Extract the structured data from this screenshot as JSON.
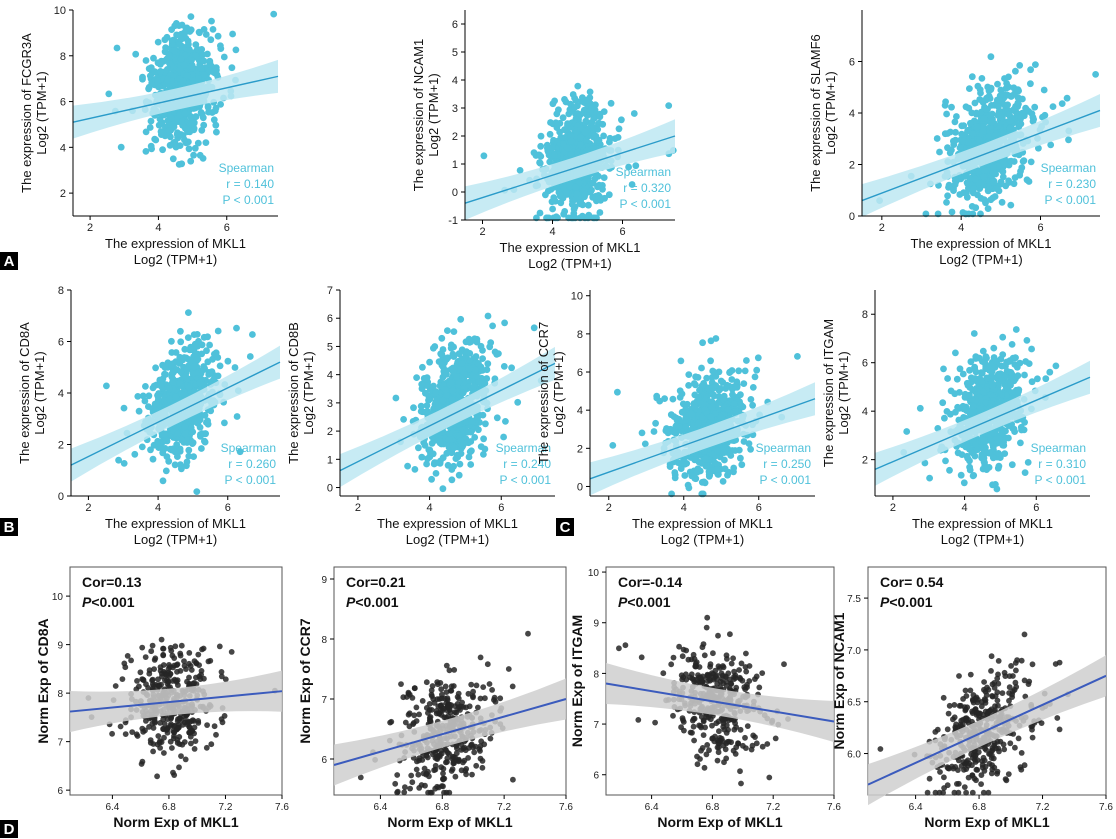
{
  "colors": {
    "point_top": "#4fc1da",
    "band_top": "#bde7f2",
    "line_top": "#2a9bc9",
    "point_bottom": "#262626",
    "band_bottom": "#cfcfcf",
    "line_bottom": "#3b5bbd"
  },
  "panel_labels": [
    "A",
    "B",
    "C",
    "D"
  ],
  "chart_data": [
    {
      "type": "scatter",
      "xlabel": "The expression of MKL1",
      "xlabel2": "Log2 (TPM+1)",
      "ylabel": "The expression of FCGR3A",
      "ylabel2": "Log2 (TPM+1)",
      "xlim": [
        1.5,
        7.5
      ],
      "ylim": [
        1,
        10
      ],
      "xticks": [
        2,
        4,
        6
      ],
      "yticks": [
        2,
        4,
        6,
        8,
        10
      ],
      "legend": [
        "Spearman",
        "r = 0.140",
        "P < 0.001"
      ],
      "trend": {
        "x": [
          1.5,
          7.5
        ],
        "y": [
          5.1,
          7.1
        ]
      }
    },
    {
      "type": "scatter",
      "xlabel": "The expression of MKL1",
      "xlabel2": "Log2 (TPM+1)",
      "ylabel": "The expression of NCAM1",
      "ylabel2": "Log2 (TPM+1)",
      "xlim": [
        1.5,
        7.5
      ],
      "ylim": [
        -1,
        6.5
      ],
      "xticks": [
        2,
        4,
        6
      ],
      "yticks": [
        -1,
        0,
        1,
        2,
        3,
        4,
        5,
        6
      ],
      "legend": [
        "Spearman",
        "r = 0.320",
        "P < 0.001"
      ],
      "trend": {
        "x": [
          1.5,
          7.5
        ],
        "y": [
          -0.4,
          2.0
        ]
      }
    },
    {
      "type": "scatter",
      "xlabel": "The expression of MKL1",
      "xlabel2": "Log2 (TPM+1)",
      "ylabel": "The expression of SLAMF6",
      "ylabel2": "Log2 (TPM+1)",
      "xlim": [
        1.5,
        7.5
      ],
      "ylim": [
        0,
        8
      ],
      "xticks": [
        2,
        4,
        6
      ],
      "yticks": [
        0,
        2,
        4,
        6
      ],
      "legend": [
        "Spearman",
        "r = 0.230",
        "P < 0.001"
      ],
      "trend": {
        "x": [
          1.5,
          7.5
        ],
        "y": [
          0.6,
          4.1
        ]
      }
    },
    {
      "type": "scatter",
      "xlabel": "The expression of MKL1",
      "xlabel2": "Log2 (TPM+1)",
      "ylabel": "The expression of CD8A",
      "ylabel2": "Log2 (TPM+1)",
      "xlim": [
        1.5,
        7.5
      ],
      "ylim": [
        0,
        8
      ],
      "xticks": [
        2,
        4,
        6
      ],
      "yticks": [
        0,
        2,
        4,
        6,
        8
      ],
      "legend": [
        "Spearman",
        "r = 0.260",
        "P < 0.001"
      ],
      "trend": {
        "x": [
          1.5,
          7.5
        ],
        "y": [
          1.2,
          5.2
        ]
      }
    },
    {
      "type": "scatter",
      "xlabel": "The expression of MKL1",
      "xlabel2": "Log2 (TPM+1)",
      "ylabel": "The expression of CD8B",
      "ylabel2": "Log2 (TPM+1)",
      "xlim": [
        1.5,
        7.5
      ],
      "ylim": [
        -0.3,
        7
      ],
      "xticks": [
        2,
        4,
        6
      ],
      "yticks": [
        0,
        1,
        2,
        3,
        4,
        5,
        6,
        7
      ],
      "legend": [
        "Spearman",
        "r = 0.240",
        "P < 0.001"
      ],
      "trend": {
        "x": [
          1.5,
          7.5
        ],
        "y": [
          0.6,
          4.4
        ]
      }
    },
    {
      "type": "scatter",
      "xlabel": "The expression of MKL1",
      "xlabel2": "Log2 (TPM+1)",
      "ylabel": "The expression of CCR7",
      "ylabel2": "Log2 (TPM+1)",
      "xlim": [
        1.5,
        7.5
      ],
      "ylim": [
        -0.5,
        10.3
      ],
      "xticks": [
        2,
        4,
        6
      ],
      "yticks": [
        0,
        2,
        4,
        6,
        8,
        10
      ],
      "legend": [
        "Spearman",
        "r = 0.250",
        "P < 0.001"
      ],
      "trend": {
        "x": [
          1.5,
          7.5
        ],
        "y": [
          0.4,
          4.6
        ]
      }
    },
    {
      "type": "scatter",
      "xlabel": "The expression of MKL1",
      "xlabel2": "Log2 (TPM+1)",
      "ylabel": "The expression of ITGAM",
      "ylabel2": "Log2 (TPM+1)",
      "xlim": [
        1.5,
        7.5
      ],
      "ylim": [
        0.5,
        9
      ],
      "xticks": [
        2,
        4,
        6
      ],
      "yticks": [
        2,
        4,
        6,
        8
      ],
      "legend": [
        "Spearman",
        "r = 0.310",
        "P < 0.001"
      ],
      "trend": {
        "x": [
          1.5,
          7.5
        ],
        "y": [
          1.6,
          5.4
        ]
      }
    },
    {
      "type": "scatter",
      "xlabel": "Norm Exp of MKL1",
      "ylabel": "Norm Exp of CD8A",
      "xlim": [
        6.1,
        7.6
      ],
      "ylim": [
        5.9,
        10.6
      ],
      "xticks": [
        6.4,
        6.8,
        7.2,
        7.6
      ],
      "yticks": [
        6,
        7,
        8,
        9,
        10
      ],
      "cor": "Cor=0.13",
      "p_symbol": "P",
      "p_value": "<0.001",
      "trend": {
        "x": [
          6.1,
          7.6
        ],
        "y": [
          7.62,
          8.04
        ]
      }
    },
    {
      "type": "scatter",
      "xlabel": "Norm Exp of MKL1",
      "ylabel": "Norm Exp of CCR7",
      "xlim": [
        6.1,
        7.6
      ],
      "ylim": [
        5.4,
        9.2
      ],
      "xticks": [
        6.4,
        6.8,
        7.2,
        7.6
      ],
      "yticks": [
        6,
        7,
        8,
        9
      ],
      "cor": "Cor=0.21",
      "p_symbol": "P",
      "p_value": "<0.001",
      "trend": {
        "x": [
          6.1,
          7.6
        ],
        "y": [
          5.9,
          7.0
        ]
      }
    },
    {
      "type": "scatter",
      "xlabel": "Norm Exp of MKL1",
      "ylabel": "Norm Exp of ITGAM",
      "xlim": [
        6.1,
        7.6
      ],
      "ylim": [
        5.6,
        10.1
      ],
      "xticks": [
        6.4,
        6.8,
        7.2,
        7.6
      ],
      "yticks": [
        6,
        7,
        8,
        9,
        10
      ],
      "cor": "Cor=-0.14",
      "p_symbol": "P",
      "p_value": "<0.001",
      "trend": {
        "x": [
          6.1,
          7.6
        ],
        "y": [
          7.8,
          7.05
        ]
      }
    },
    {
      "type": "scatter",
      "xlabel": "Norm Exp of MKL1",
      "ylabel": "Norm Exp of NCAM1",
      "xlim": [
        6.1,
        7.6
      ],
      "ylim": [
        5.6,
        7.8
      ],
      "xticks": [
        6.4,
        6.8,
        7.2,
        7.6
      ],
      "yticks": [
        6.0,
        6.5,
        7.0,
        7.5
      ],
      "cor": "Cor= 0.54",
      "p_symbol": "P",
      "p_value": "<0.001",
      "trend": {
        "x": [
          6.1,
          7.6
        ],
        "y": [
          5.7,
          6.75
        ]
      }
    }
  ]
}
